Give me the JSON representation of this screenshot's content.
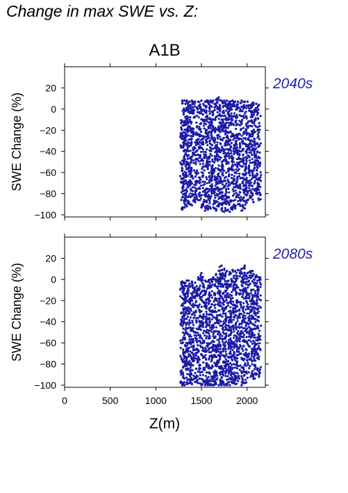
{
  "figure": {
    "title": "Change in max SWE vs. Z:",
    "scenario": "A1B",
    "xlabel": "Z(m)"
  },
  "chart_data": [
    {
      "type": "scatter",
      "period_label": "2040s",
      "ylabel": "SWE Change (%)",
      "xlim": [
        0,
        2200
      ],
      "ylim": [
        -102,
        40
      ],
      "xticks": [
        0,
        500,
        1000,
        1500,
        2000
      ],
      "yticks": [
        -100,
        -80,
        -60,
        -40,
        -20,
        0,
        20
      ],
      "grid": false,
      "point_color": "#1a1aa8",
      "station_columns": [
        {
          "x": 1290,
          "ymin": -95,
          "ymax": 8
        },
        {
          "x": 1315,
          "ymin": -93,
          "ymax": 8
        },
        {
          "x": 1340,
          "ymin": -92,
          "ymax": 8
        },
        {
          "x": 1370,
          "ymin": -90,
          "ymax": 7
        },
        {
          "x": 1395,
          "ymin": -91,
          "ymax": 8
        },
        {
          "x": 1430,
          "ymin": -88,
          "ymax": 7
        },
        {
          "x": 1465,
          "ymin": -86,
          "ymax": 7
        },
        {
          "x": 1500,
          "ymin": -93,
          "ymax": 8
        },
        {
          "x": 1540,
          "ymin": -96,
          "ymax": 7
        },
        {
          "x": 1570,
          "ymin": -95,
          "ymax": 8
        },
        {
          "x": 1600,
          "ymin": -94,
          "ymax": 8
        },
        {
          "x": 1630,
          "ymin": -93,
          "ymax": 8
        },
        {
          "x": 1660,
          "ymin": -96,
          "ymax": 9
        },
        {
          "x": 1690,
          "ymin": -92,
          "ymax": 11
        },
        {
          "x": 1720,
          "ymin": -95,
          "ymax": 8
        },
        {
          "x": 1750,
          "ymin": -97,
          "ymax": 8
        },
        {
          "x": 1780,
          "ymin": -96,
          "ymax": 8
        },
        {
          "x": 1810,
          "ymin": -97,
          "ymax": 7
        },
        {
          "x": 1840,
          "ymin": -95,
          "ymax": 8
        },
        {
          "x": 1870,
          "ymin": -94,
          "ymax": 7
        },
        {
          "x": 1900,
          "ymin": -90,
          "ymax": 7
        },
        {
          "x": 1940,
          "ymin": -96,
          "ymax": 8
        },
        {
          "x": 1975,
          "ymin": -94,
          "ymax": 7
        },
        {
          "x": 2005,
          "ymin": -86,
          "ymax": 7
        },
        {
          "x": 2040,
          "ymin": -84,
          "ymax": 4
        },
        {
          "x": 2070,
          "ymin": -88,
          "ymax": 6
        },
        {
          "x": 2100,
          "ymin": -80,
          "ymax": 5
        },
        {
          "x": 2130,
          "ymin": -86,
          "ymax": 4
        }
      ]
    },
    {
      "type": "scatter",
      "period_label": "2080s",
      "ylabel": "SWE Change (%)",
      "xlim": [
        0,
        2200
      ],
      "ylim": [
        -102,
        40
      ],
      "xticks": [
        0,
        500,
        1000,
        1500,
        2000
      ],
      "yticks": [
        -100,
        -80,
        -60,
        -40,
        -20,
        0,
        20
      ],
      "grid": false,
      "point_color": "#1a1aa8",
      "station_columns": [
        {
          "x": 1290,
          "ymin": -100,
          "ymax": -2
        },
        {
          "x": 1315,
          "ymin": -100,
          "ymax": -3
        },
        {
          "x": 1340,
          "ymin": -99,
          "ymax": -1
        },
        {
          "x": 1370,
          "ymin": -98,
          "ymax": -4
        },
        {
          "x": 1395,
          "ymin": -99,
          "ymax": -2
        },
        {
          "x": 1430,
          "ymin": -97,
          "ymax": -3
        },
        {
          "x": 1465,
          "ymin": -98,
          "ymax": 2
        },
        {
          "x": 1500,
          "ymin": -100,
          "ymax": 6
        },
        {
          "x": 1540,
          "ymin": -100,
          "ymax": -1
        },
        {
          "x": 1570,
          "ymin": -100,
          "ymax": -2
        },
        {
          "x": 1600,
          "ymin": -100,
          "ymax": 0
        },
        {
          "x": 1630,
          "ymin": -100,
          "ymax": 2
        },
        {
          "x": 1660,
          "ymin": -99,
          "ymax": 5
        },
        {
          "x": 1690,
          "ymin": -100,
          "ymax": 8
        },
        {
          "x": 1720,
          "ymin": -100,
          "ymax": 13
        },
        {
          "x": 1750,
          "ymin": -100,
          "ymax": 10
        },
        {
          "x": 1780,
          "ymin": -100,
          "ymax": 8
        },
        {
          "x": 1810,
          "ymin": -100,
          "ymax": 7
        },
        {
          "x": 1840,
          "ymin": -98,
          "ymax": 9
        },
        {
          "x": 1870,
          "ymin": -99,
          "ymax": 8
        },
        {
          "x": 1900,
          "ymin": -96,
          "ymax": 9
        },
        {
          "x": 1940,
          "ymin": -100,
          "ymax": 10
        },
        {
          "x": 1975,
          "ymin": -98,
          "ymax": 13
        },
        {
          "x": 2005,
          "ymin": -93,
          "ymax": 6
        },
        {
          "x": 2040,
          "ymin": -92,
          "ymax": 8
        },
        {
          "x": 2070,
          "ymin": -94,
          "ymax": 5
        },
        {
          "x": 2100,
          "ymin": -90,
          "ymax": 4
        },
        {
          "x": 2130,
          "ymin": -92,
          "ymax": 2
        }
      ]
    }
  ]
}
